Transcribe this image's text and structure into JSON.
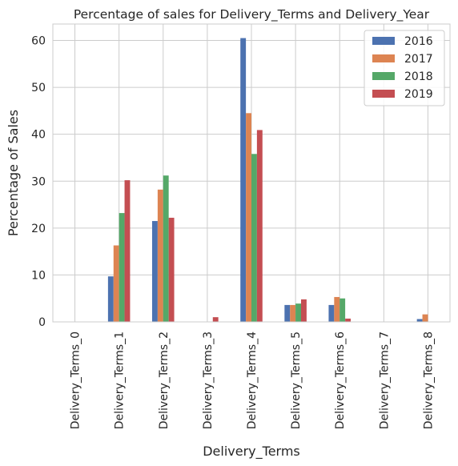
{
  "chart_data": {
    "type": "bar",
    "title": "Percentage of sales for Delivery_Terms and Delivery_Year",
    "xlabel": "Delivery_Terms",
    "ylabel": "Percentage of Sales",
    "ylim": [
      0,
      63.5
    ],
    "yticks": [
      0,
      10,
      20,
      30,
      40,
      50,
      60
    ],
    "grid": true,
    "legend_position": "top-right",
    "categories": [
      "Delivery_Terms_0",
      "Delivery_Terms_1",
      "Delivery_Terms_2",
      "Delivery_Terms_3",
      "Delivery_Terms_4",
      "Delivery_Terms_5",
      "Delivery_Terms_6",
      "Delivery_Terms_7",
      "Delivery_Terms_8"
    ],
    "series": [
      {
        "name": "2016",
        "color": "#4c72b0",
        "values": [
          0.0,
          9.7,
          21.5,
          0.0,
          60.5,
          3.6,
          3.6,
          0.0,
          0.6
        ]
      },
      {
        "name": "2017",
        "color": "#dd8452",
        "values": [
          0.0,
          16.3,
          28.2,
          0.0,
          44.5,
          3.6,
          5.3,
          0.0,
          1.6
        ]
      },
      {
        "name": "2018",
        "color": "#55a868",
        "values": [
          0.0,
          23.2,
          31.2,
          0.0,
          35.8,
          3.9,
          5.0,
          0.0,
          0.0
        ]
      },
      {
        "name": "2019",
        "color": "#c44e52",
        "values": [
          0.0,
          30.2,
          22.2,
          1.0,
          40.9,
          4.8,
          0.7,
          0.0,
          0.0
        ]
      }
    ]
  }
}
